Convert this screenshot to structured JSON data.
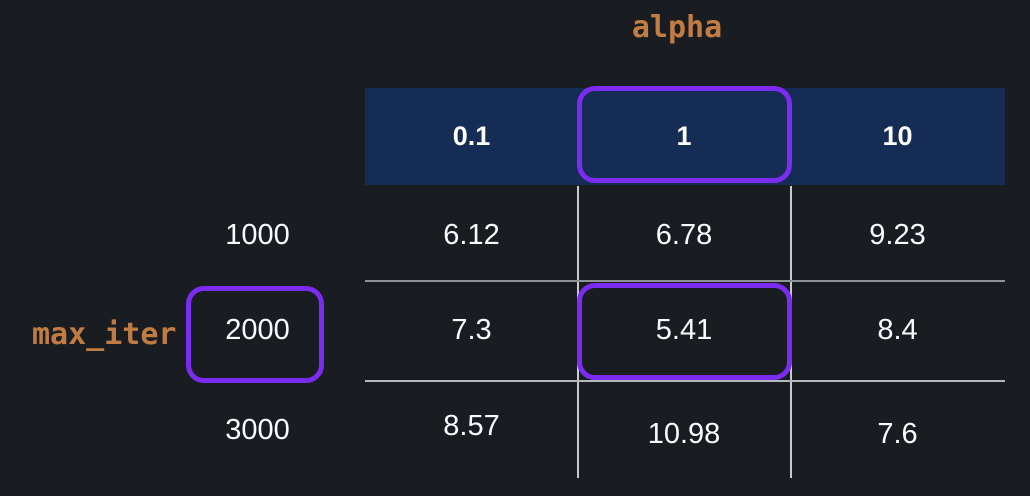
{
  "colors": {
    "background": "#191c21",
    "header_background": "#152c55",
    "highlight_purple": "#7c2bf0",
    "axis_label_orange": "#c17c43",
    "text_white": "#fafbfc",
    "gridline_gray": "#aeb2b8"
  },
  "axes": {
    "column_axis_label": "alpha",
    "row_axis_label": "max_iter"
  },
  "table": {
    "column_headers": [
      "0.1",
      "1",
      "10"
    ],
    "rows": [
      {
        "label": "1000",
        "values": [
          "6.12",
          "6.78",
          "9.23"
        ]
      },
      {
        "label": "2000",
        "values": [
          "7.3",
          "5.41",
          "8.4"
        ]
      },
      {
        "label": "3000",
        "values": [
          "8.57",
          "10.98",
          "7.6"
        ]
      }
    ],
    "highlights": {
      "column_header": "1",
      "row_label": "2000",
      "cell_value": "5.41"
    }
  },
  "chart_data": {
    "type": "table",
    "title": "alpha",
    "xlabel": "alpha",
    "ylabel": "max_iter",
    "columns": [
      0.1,
      1,
      10
    ],
    "row_categories": [
      1000,
      2000,
      3000
    ],
    "series": [
      {
        "name": "max_iter=1000",
        "values": [
          6.12,
          6.78,
          9.23
        ]
      },
      {
        "name": "max_iter=2000",
        "values": [
          7.3,
          5.41,
          8.4
        ]
      },
      {
        "name": "max_iter=3000",
        "values": [
          8.57,
          10.98,
          7.6
        ]
      }
    ],
    "annotations": {
      "highlighted_column": 1,
      "highlighted_row": 2000,
      "highlighted_best_cell": 5.41
    },
    "legend_position": "none",
    "grid": true
  }
}
